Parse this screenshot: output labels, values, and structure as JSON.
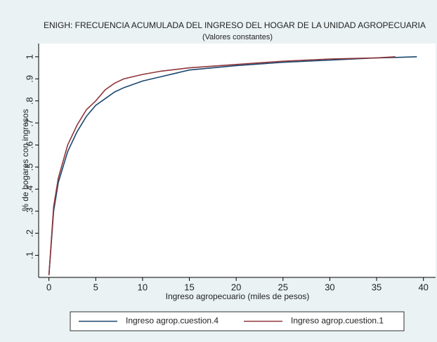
{
  "chart_data": {
    "type": "line",
    "title": "ENIGH: FRECUENCIA ACUMULADA DEL INGRESO DEL HOGAR DE LA UNIDAD AGROPECUARIA",
    "subtitle": "(Valores constantes)",
    "x_label": "Ingreso agropecuario (miles de pesos)",
    "y_label": "% de hogares con ingresos",
    "x": [
      0,
      0.5,
      1,
      2,
      3,
      4,
      5,
      6,
      7,
      8,
      10,
      12,
      15,
      20,
      25,
      30,
      35,
      37,
      39.3
    ],
    "series": [
      {
        "name": "Ingreso agrop.cuestion.4",
        "color": "#1a476f",
        "values": [
          0.01,
          0.3,
          0.43,
          0.57,
          0.66,
          0.73,
          0.78,
          0.81,
          0.84,
          0.86,
          0.89,
          0.91,
          0.94,
          0.96,
          0.975,
          0.985,
          0.995,
          0.997,
          1.0
        ]
      },
      {
        "name": "Ingreso agrop.cuestion.1",
        "color": "#90353b",
        "values": [
          0.01,
          0.32,
          0.45,
          0.6,
          0.69,
          0.76,
          0.8,
          0.85,
          0.88,
          0.9,
          0.92,
          0.935,
          0.95,
          0.965,
          0.98,
          0.99,
          0.995,
          1.0,
          null
        ]
      }
    ],
    "xlim": [
      -1.1,
      41.3
    ],
    "ylim": [
      0,
      1.06
    ],
    "xticks": [
      0,
      5,
      10,
      15,
      20,
      25,
      30,
      35,
      40
    ],
    "yticks": [
      {
        "value": 0.1,
        "label": ".1"
      },
      {
        "value": 0.2,
        "label": ".2"
      },
      {
        "value": 0.3,
        "label": ".3"
      },
      {
        "value": 0.4,
        "label": ".4"
      },
      {
        "value": 0.5,
        "label": ".5"
      },
      {
        "value": 0.6,
        "label": ".6"
      },
      {
        "value": 0.7,
        "label": ".7"
      },
      {
        "value": 0.8,
        "label": ".8"
      },
      {
        "value": 0.9,
        "label": ".9"
      },
      1
    ],
    "legend_position": "bottom"
  }
}
